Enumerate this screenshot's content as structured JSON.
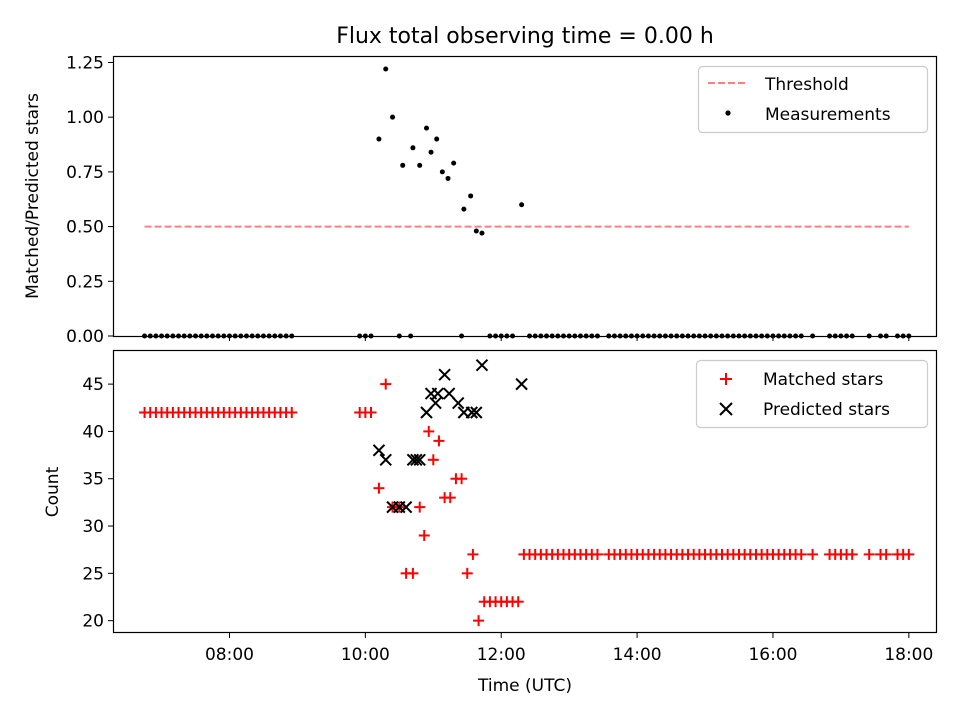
{
  "chart_data": [
    {
      "type": "scatter",
      "title": "Flux total observing time = 0.00 h",
      "xlabel": "",
      "ylabel": "Matched/Predicted stars",
      "xlim": [
        "06:18",
        "18:24"
      ],
      "ylim": [
        0,
        1.275
      ],
      "yticks": [
        0.0,
        0.25,
        0.5,
        0.75,
        1.0,
        1.25
      ],
      "ytick_labels": [
        "0.00",
        "0.25",
        "0.50",
        "0.75",
        "1.00",
        "1.25"
      ],
      "legend_position": "top-right",
      "series": [
        {
          "name": "Threshold",
          "kind": "dashed-line",
          "color": "#ff7f7f",
          "points": [
            [
              "06:45",
              0.5
            ],
            [
              "18:00",
              0.5
            ]
          ]
        },
        {
          "name": "Measurements",
          "kind": "dot",
          "color": "#000000",
          "points": [
            [
              "10:12",
              0.9
            ],
            [
              "10:18",
              1.22
            ],
            [
              "10:24",
              1.0
            ],
            [
              "10:33",
              0.78
            ],
            [
              "10:42",
              0.86
            ],
            [
              "10:48",
              0.78
            ],
            [
              "10:54",
              0.95
            ],
            [
              "10:58",
              0.84
            ],
            [
              "11:03",
              0.9
            ],
            [
              "11:08",
              0.75
            ],
            [
              "11:13",
              0.72
            ],
            [
              "11:18",
              0.79
            ],
            [
              "11:27",
              0.58
            ],
            [
              "11:33",
              0.64
            ],
            [
              "11:38",
              0.48
            ],
            [
              "11:43",
              0.47
            ],
            [
              "12:18",
              0.6
            ]
          ],
          "zero_points": [
            "06:45",
            "06:50",
            "06:55",
            "07:00",
            "07:05",
            "07:10",
            "07:15",
            "07:20",
            "07:25",
            "07:30",
            "07:35",
            "07:40",
            "07:45",
            "07:50",
            "07:55",
            "08:00",
            "08:05",
            "08:10",
            "08:15",
            "08:20",
            "08:25",
            "08:30",
            "08:35",
            "08:40",
            "08:45",
            "08:50",
            "08:55",
            "09:55",
            "10:00",
            "10:05",
            "10:30",
            "10:40",
            "11:25",
            "11:50",
            "11:55",
            "12:00",
            "12:05",
            "12:10",
            "12:25",
            "12:30",
            "12:35",
            "12:40",
            "12:45",
            "12:50",
            "12:55",
            "13:00",
            "13:05",
            "13:10",
            "13:15",
            "13:20",
            "13:25",
            "13:35",
            "13:40",
            "13:45",
            "13:50",
            "13:55",
            "14:00",
            "14:05",
            "14:10",
            "14:15",
            "14:20",
            "14:25",
            "14:30",
            "14:35",
            "14:40",
            "14:45",
            "14:50",
            "14:55",
            "15:00",
            "15:05",
            "15:10",
            "15:15",
            "15:20",
            "15:25",
            "15:30",
            "15:35",
            "15:40",
            "15:45",
            "15:50",
            "15:55",
            "16:00",
            "16:05",
            "16:10",
            "16:15",
            "16:20",
            "16:25",
            "16:35",
            "16:50",
            "16:55",
            "17:00",
            "17:05",
            "17:10",
            "17:25",
            "17:35",
            "17:40",
            "17:50",
            "17:55",
            "18:00"
          ]
        }
      ]
    },
    {
      "type": "scatter",
      "title": "",
      "xlabel": "Time (UTC)",
      "ylabel": "Count",
      "xlim": [
        "06:18",
        "18:24"
      ],
      "ylim": [
        18.8,
        48.5
      ],
      "xtick_labels": [
        "08:00",
        "10:00",
        "12:00",
        "14:00",
        "16:00",
        "18:00"
      ],
      "yticks": [
        20,
        25,
        30,
        35,
        40,
        45
      ],
      "legend_position": "top-right",
      "series": [
        {
          "name": "Matched stars",
          "marker": "+",
          "color": "#ff0000",
          "points": [
            [
              "06:45",
              42
            ],
            [
              "06:50",
              42
            ],
            [
              "06:55",
              42
            ],
            [
              "07:00",
              42
            ],
            [
              "07:05",
              42
            ],
            [
              "07:10",
              42
            ],
            [
              "07:15",
              42
            ],
            [
              "07:20",
              42
            ],
            [
              "07:25",
              42
            ],
            [
              "07:30",
              42
            ],
            [
              "07:35",
              42
            ],
            [
              "07:40",
              42
            ],
            [
              "07:45",
              42
            ],
            [
              "07:50",
              42
            ],
            [
              "07:55",
              42
            ],
            [
              "08:00",
              42
            ],
            [
              "08:05",
              42
            ],
            [
              "08:10",
              42
            ],
            [
              "08:15",
              42
            ],
            [
              "08:20",
              42
            ],
            [
              "08:25",
              42
            ],
            [
              "08:30",
              42
            ],
            [
              "08:35",
              42
            ],
            [
              "08:40",
              42
            ],
            [
              "08:45",
              42
            ],
            [
              "08:50",
              42
            ],
            [
              "08:55",
              42
            ],
            [
              "09:55",
              42
            ],
            [
              "10:00",
              42
            ],
            [
              "10:05",
              42
            ],
            [
              "10:12",
              34
            ],
            [
              "10:18",
              45
            ],
            [
              "10:24",
              32
            ],
            [
              "10:30",
              32
            ],
            [
              "10:36",
              25
            ],
            [
              "10:42",
              25
            ],
            [
              "10:48",
              32
            ],
            [
              "10:52",
              29
            ],
            [
              "10:56",
              40
            ],
            [
              "11:00",
              37
            ],
            [
              "11:05",
              39
            ],
            [
              "11:10",
              33
            ],
            [
              "11:15",
              33
            ],
            [
              "11:20",
              35
            ],
            [
              "11:25",
              35
            ],
            [
              "11:30",
              25
            ],
            [
              "11:35",
              27
            ],
            [
              "11:40",
              20
            ],
            [
              "11:45",
              22
            ],
            [
              "11:50",
              22
            ],
            [
              "11:55",
              22
            ],
            [
              "12:00",
              22
            ],
            [
              "12:05",
              22
            ],
            [
              "12:10",
              22
            ],
            [
              "12:15",
              22
            ],
            [
              "12:20",
              27
            ],
            [
              "12:25",
              27
            ],
            [
              "12:30",
              27
            ],
            [
              "12:35",
              27
            ],
            [
              "12:40",
              27
            ],
            [
              "12:45",
              27
            ],
            [
              "12:50",
              27
            ],
            [
              "12:55",
              27
            ],
            [
              "13:00",
              27
            ],
            [
              "13:05",
              27
            ],
            [
              "13:10",
              27
            ],
            [
              "13:15",
              27
            ],
            [
              "13:20",
              27
            ],
            [
              "13:25",
              27
            ],
            [
              "13:35",
              27
            ],
            [
              "13:40",
              27
            ],
            [
              "13:45",
              27
            ],
            [
              "13:50",
              27
            ],
            [
              "13:55",
              27
            ],
            [
              "14:00",
              27
            ],
            [
              "14:05",
              27
            ],
            [
              "14:10",
              27
            ],
            [
              "14:15",
              27
            ],
            [
              "14:20",
              27
            ],
            [
              "14:25",
              27
            ],
            [
              "14:30",
              27
            ],
            [
              "14:35",
              27
            ],
            [
              "14:40",
              27
            ],
            [
              "14:45",
              27
            ],
            [
              "14:50",
              27
            ],
            [
              "14:55",
              27
            ],
            [
              "15:00",
              27
            ],
            [
              "15:05",
              27
            ],
            [
              "15:10",
              27
            ],
            [
              "15:15",
              27
            ],
            [
              "15:20",
              27
            ],
            [
              "15:25",
              27
            ],
            [
              "15:30",
              27
            ],
            [
              "15:35",
              27
            ],
            [
              "15:40",
              27
            ],
            [
              "15:45",
              27
            ],
            [
              "15:50",
              27
            ],
            [
              "15:55",
              27
            ],
            [
              "16:00",
              27
            ],
            [
              "16:05",
              27
            ],
            [
              "16:10",
              27
            ],
            [
              "16:15",
              27
            ],
            [
              "16:20",
              27
            ],
            [
              "16:25",
              27
            ],
            [
              "16:35",
              27
            ],
            [
              "16:50",
              27
            ],
            [
              "16:55",
              27
            ],
            [
              "17:00",
              27
            ],
            [
              "17:05",
              27
            ],
            [
              "17:10",
              27
            ],
            [
              "17:25",
              27
            ],
            [
              "17:35",
              27
            ],
            [
              "17:40",
              27
            ],
            [
              "17:50",
              27
            ],
            [
              "17:55",
              27
            ],
            [
              "18:00",
              27
            ]
          ]
        },
        {
          "name": "Predicted stars",
          "marker": "x",
          "color": "#000000",
          "points": [
            [
              "10:12",
              38
            ],
            [
              "10:18",
              37
            ],
            [
              "10:24",
              32
            ],
            [
              "10:30",
              32
            ],
            [
              "10:36",
              32
            ],
            [
              "10:42",
              37
            ],
            [
              "10:45",
              37
            ],
            [
              "10:48",
              37
            ],
            [
              "10:54",
              42
            ],
            [
              "10:58",
              44
            ],
            [
              "11:02",
              43
            ],
            [
              "11:04",
              44
            ],
            [
              "11:10",
              46
            ],
            [
              "11:14",
              44
            ],
            [
              "11:22",
              43
            ],
            [
              "11:27",
              42
            ],
            [
              "11:34",
              42
            ],
            [
              "11:38",
              42
            ],
            [
              "11:43",
              47
            ],
            [
              "12:18",
              45
            ]
          ]
        }
      ]
    }
  ]
}
